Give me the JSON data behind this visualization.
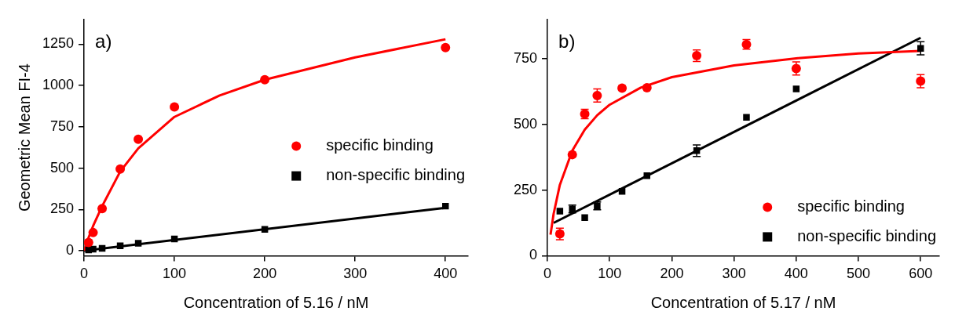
{
  "chart_data": [
    {
      "type": "scatter",
      "ylabel": "Geometric Mean FI-4",
      "xlabel": "Concentration of 5.16 / nM",
      "annotations": [
        "a)"
      ],
      "xlim": [
        0,
        425
      ],
      "ylim": [
        -30,
        1400
      ],
      "xticks": [
        0,
        100,
        200,
        300,
        400
      ],
      "yticks": [
        0,
        250,
        500,
        750,
        1000,
        1250
      ],
      "grid": false,
      "legend": "right",
      "series": [
        {
          "name": "specific binding",
          "color": "#ff0000",
          "marker": "circle",
          "x": [
            5,
            10,
            20,
            40,
            60,
            100,
            200,
            400
          ],
          "values": [
            50,
            110,
            255,
            495,
            675,
            870,
            1035,
            1230
          ]
        },
        {
          "name": "non-specific binding",
          "color": "#000000",
          "marker": "square",
          "x": [
            5,
            10,
            20,
            40,
            60,
            100,
            200,
            400
          ],
          "values": [
            5,
            10,
            15,
            30,
            45,
            72,
            130,
            270
          ]
        },
        {
          "type": "line",
          "color": "#ff0000",
          "marker": "none",
          "x": [
            0,
            2,
            5,
            10,
            20,
            40,
            60,
            100,
            150,
            200,
            300,
            400
          ],
          "values": [
            0,
            30,
            80,
            150,
            270,
            480,
            620,
            810,
            940,
            1035,
            1170,
            1280
          ]
        },
        {
          "type": "line",
          "color": "#000000",
          "marker": "none",
          "x": [
            0,
            400
          ],
          "values": [
            0,
            260
          ]
        }
      ]
    },
    {
      "type": "scatter",
      "xlabel": "Concentration of 5.17 / nM",
      "annotations": [
        "b)"
      ],
      "xlim": [
        0,
        630
      ],
      "ylim": [
        0,
        900
      ],
      "xticks": [
        0,
        100,
        200,
        300,
        400,
        500,
        600
      ],
      "yticks": [
        0,
        250,
        500,
        750
      ],
      "grid": false,
      "legend": "bottom right",
      "series": [
        {
          "name": "specific binding",
          "color": "#ff0000",
          "marker": "circle",
          "x": [
            20,
            40,
            60,
            80,
            120,
            160,
            240,
            320,
            400,
            600
          ],
          "values": [
            83,
            385,
            540,
            610,
            638,
            640,
            762,
            805,
            713,
            665
          ],
          "errors": [
            22,
            null,
            18,
            25,
            null,
            null,
            22,
            18,
            25,
            25
          ]
        },
        {
          "name": "non-specific binding",
          "color": "#000000",
          "marker": "square",
          "x": [
            20,
            40,
            60,
            80,
            120,
            160,
            240,
            320,
            400,
            600
          ],
          "values": [
            170,
            178,
            145,
            190,
            245,
            305,
            400,
            527,
            635,
            790
          ],
          "errors": [
            null,
            15,
            null,
            15,
            null,
            null,
            22,
            null,
            null,
            25
          ]
        },
        {
          "type": "line",
          "color": "#ff0000",
          "marker": "none",
          "x": [
            5,
            10,
            20,
            40,
            60,
            80,
            100,
            150,
            200,
            300,
            400,
            500,
            600
          ],
          "values": [
            80,
            160,
            270,
            400,
            480,
            535,
            575,
            640,
            680,
            725,
            752,
            770,
            780
          ]
        },
        {
          "type": "line",
          "color": "#000000",
          "marker": "none",
          "x": [
            10,
            600
          ],
          "values": [
            125,
            830
          ]
        }
      ]
    }
  ]
}
